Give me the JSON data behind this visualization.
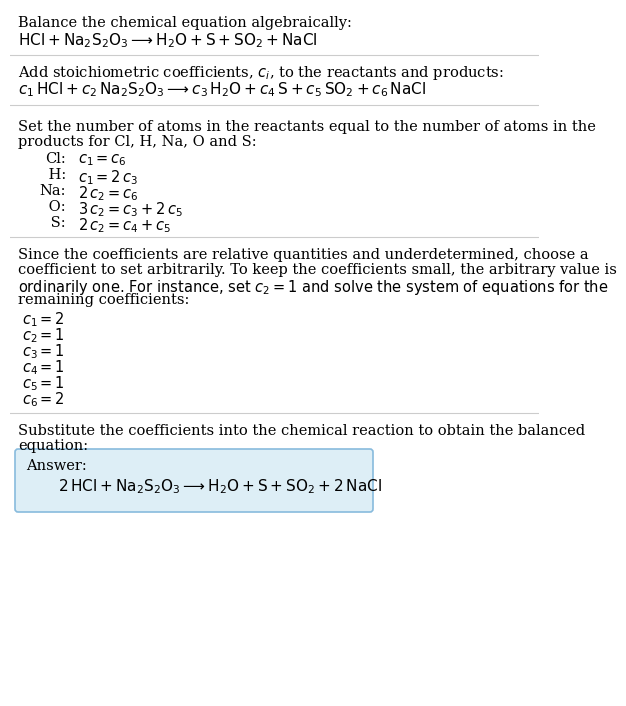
{
  "bg_color": "#ffffff",
  "text_color": "#000000",
  "fs": 10.5,
  "fs_eq": 11.0,
  "line_color": "#cccccc",
  "answer_box_facecolor": "#ddeef6",
  "answer_box_edgecolor": "#88bbdd",
  "section1_title": "Balance the chemical equation algebraically:",
  "section1_eq": "$\\mathrm{HCl} + \\mathrm{Na_2S_2O_3} \\longrightarrow \\mathrm{H_2O} + \\mathrm{S} + \\mathrm{SO_2} + \\mathrm{NaCl}$",
  "section2_title": "Add stoichiometric coefficients, $c_i$, to the reactants and products:",
  "section2_eq": "$c_1\\,\\mathrm{HCl} + c_2\\,\\mathrm{Na_2S_2O_3} \\longrightarrow c_3\\,\\mathrm{H_2O} + c_4\\,\\mathrm{S} + c_5\\,\\mathrm{SO_2} + c_6\\,\\mathrm{NaCl}$",
  "section3_title_line1": "Set the number of atoms in the reactants equal to the number of atoms in the",
  "section3_title_line2": "products for Cl, H, Na, O and S:",
  "atom_labels": [
    "Cl:",
    " H:",
    "Na:",
    " O:",
    " S:"
  ],
  "atom_eqs": [
    "$c_1 = c_6$",
    "$c_1 = 2\\,c_3$",
    "$2\\,c_2 = c_6$",
    "$3\\,c_2 = c_3 + 2\\,c_5$",
    "$2\\,c_2 = c_4 + c_5$"
  ],
  "section4_line1": "Since the coefficients are relative quantities and underdetermined, choose a",
  "section4_line2": "coefficient to set arbitrarily. To keep the coefficients small, the arbitrary value is",
  "section4_line3": "ordinarily one. For instance, set $c_2 = 1$ and solve the system of equations for the",
  "section4_line4": "remaining coefficients:",
  "coef_eqs": [
    "$c_1 = 2$",
    "$c_2 = 1$",
    "$c_3 = 1$",
    "$c_4 = 1$",
    "$c_5 = 1$",
    "$c_6 = 2$"
  ],
  "section5_line1": "Substitute the coefficients into the chemical reaction to obtain the balanced",
  "section5_line2": "equation:",
  "answer_label": "Answer:",
  "answer_eq": "$2\\,\\mathrm{HCl} + \\mathrm{Na_2S_2O_3} \\longrightarrow \\mathrm{H_2O} + \\mathrm{S} + \\mathrm{SO_2} + 2\\,\\mathrm{NaCl}$"
}
